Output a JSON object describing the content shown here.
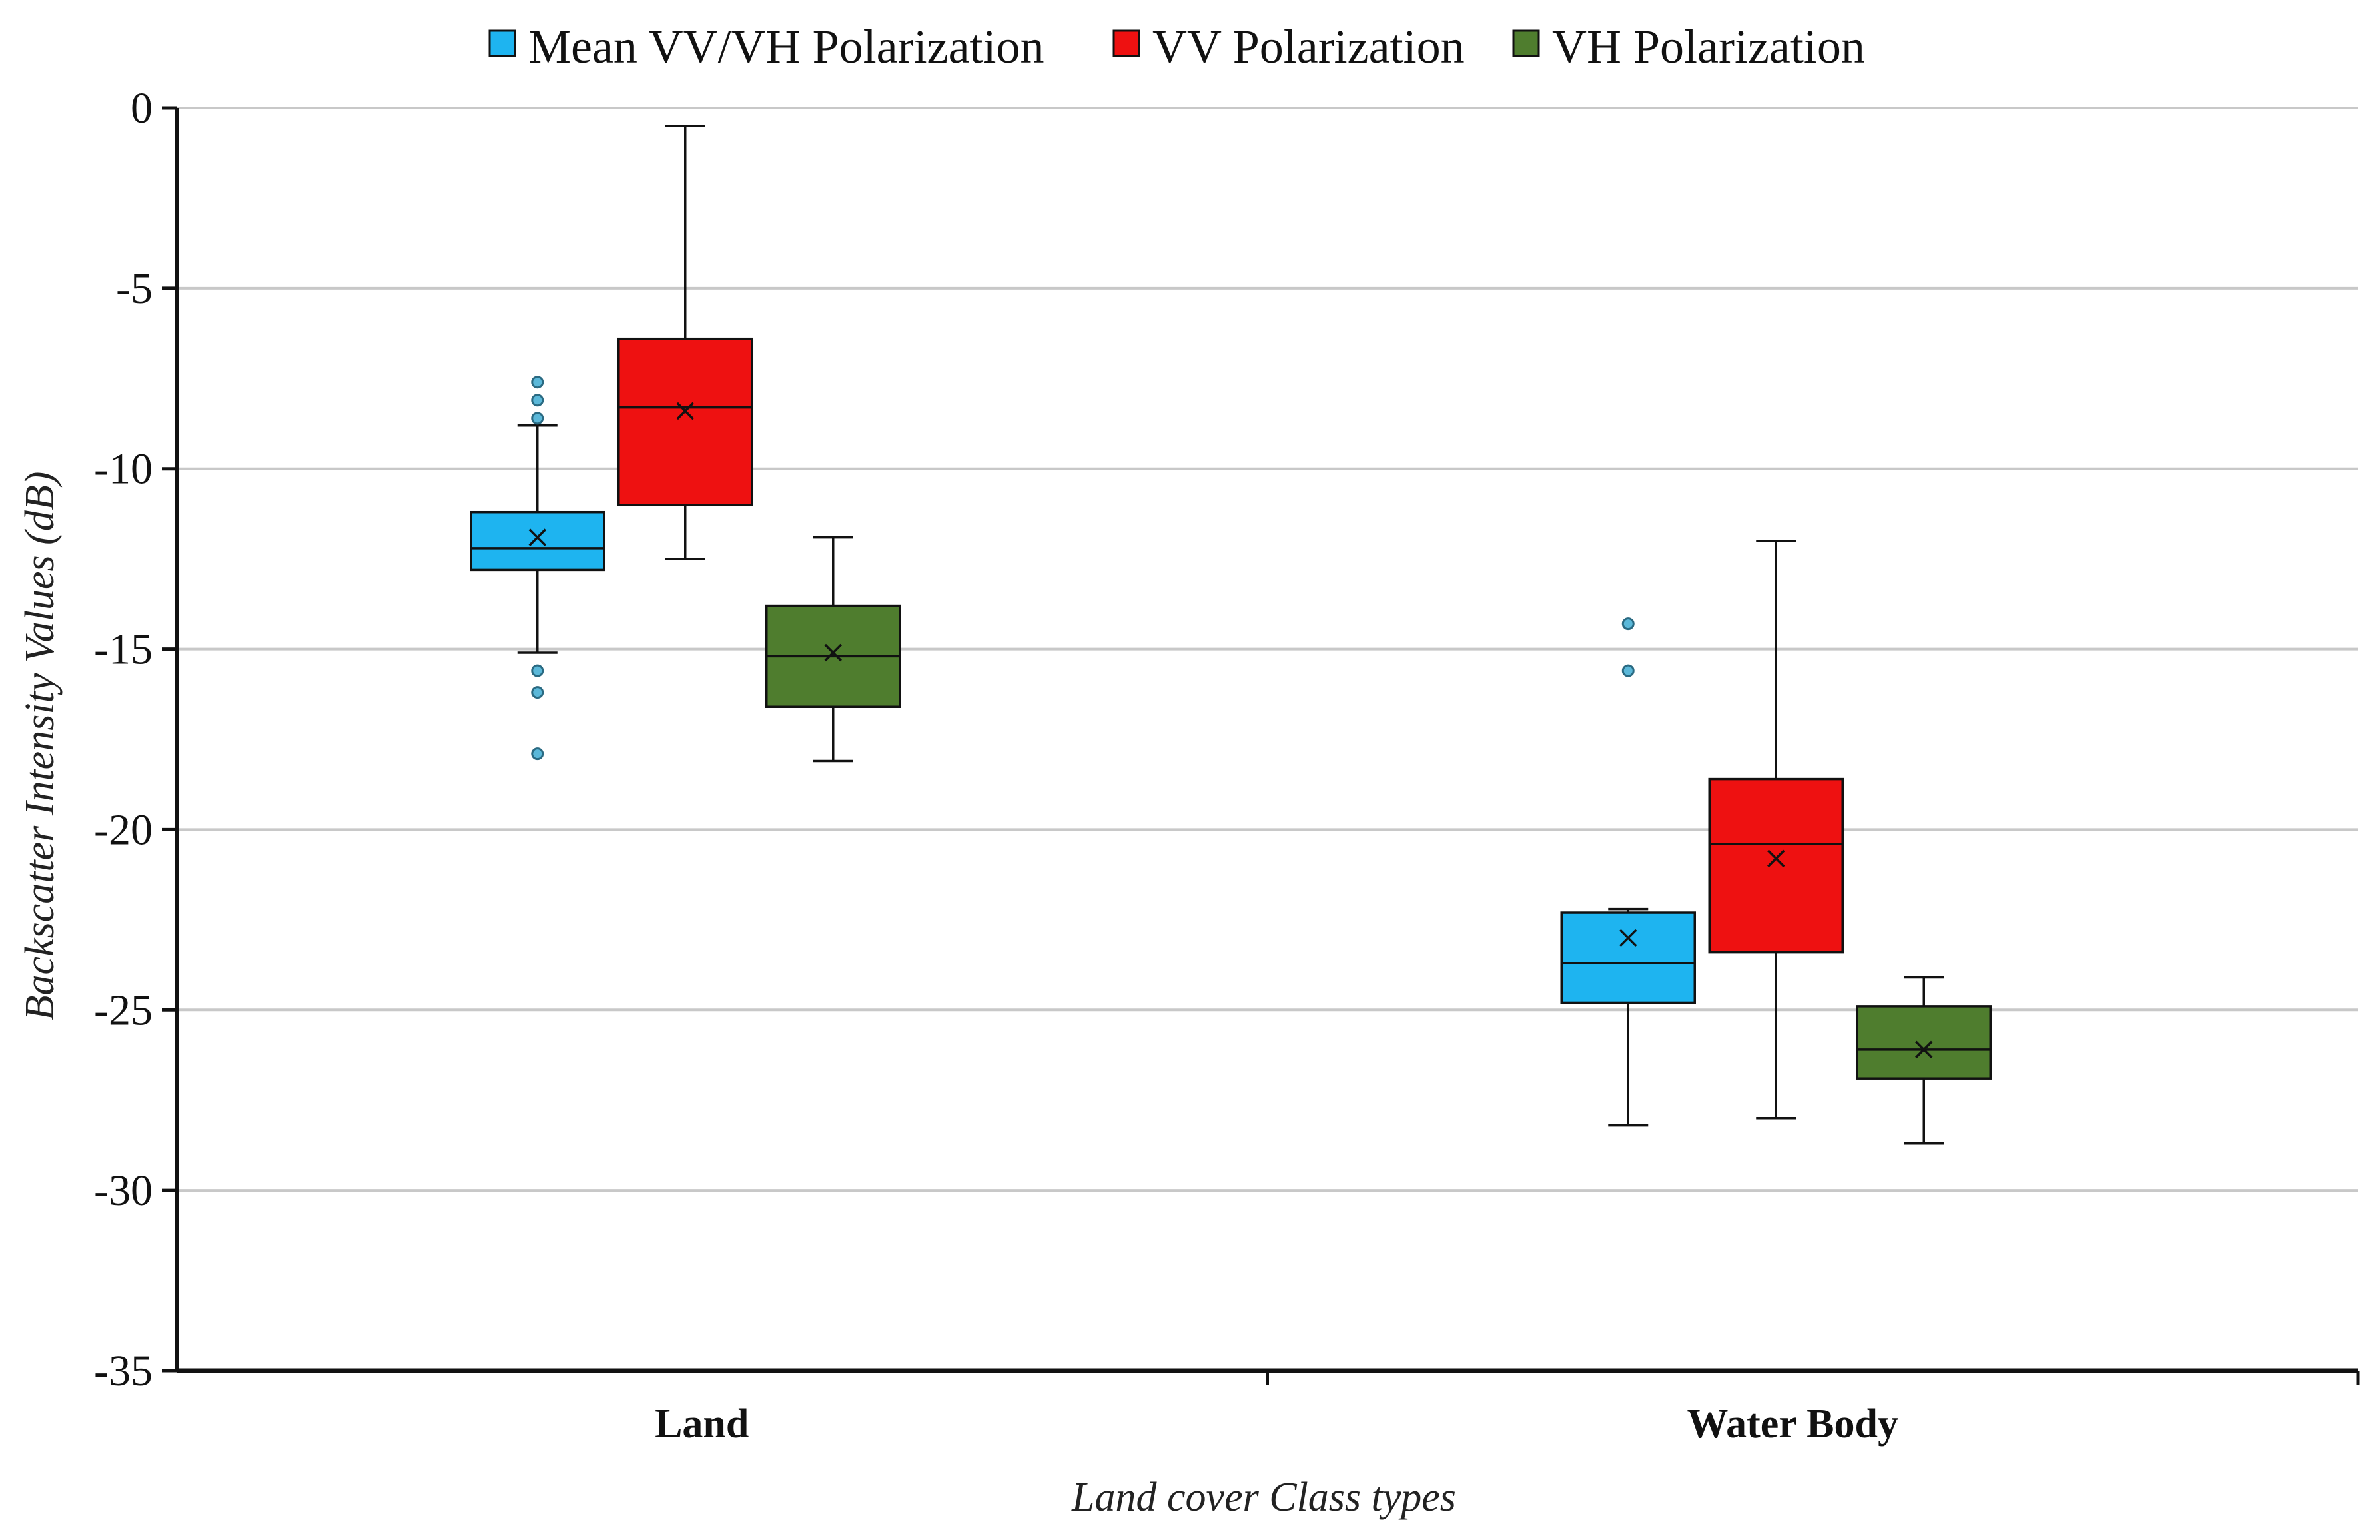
{
  "chart_data": {
    "type": "box",
    "title": "",
    "xlabel": "Land cover Class types",
    "ylabel": "Backscatter Intensity Values (dB)",
    "ylim": [
      -35,
      0
    ],
    "yticks": [
      0,
      -5,
      -10,
      -15,
      -20,
      -25,
      -30,
      -35
    ],
    "ytick_labels": [
      "0",
      "-5",
      "-10",
      "-15",
      "-20",
      "-25",
      "-30",
      "-35"
    ],
    "grid": true,
    "legend_position": "top",
    "categories": [
      "Land",
      "Water Body"
    ],
    "series": [
      {
        "name": "Mean VV/VH Polarization",
        "color": "#1eb4f0",
        "boxes": [
          {
            "category": "Land",
            "whisker_low": -15.1,
            "q1": -12.8,
            "median": -12.2,
            "q3": -11.2,
            "whisker_high": -8.8,
            "mean": -11.9,
            "outliers": [
              -7.6,
              -8.1,
              -8.6,
              -15.6,
              -16.2,
              -17.9
            ]
          },
          {
            "category": "Water Body",
            "whisker_low": -28.2,
            "q1": -24.8,
            "median": -23.7,
            "q3": -22.3,
            "whisker_high": -22.2,
            "mean": -23.0,
            "outliers": [
              -14.3,
              -15.6
            ]
          }
        ]
      },
      {
        "name": "VV Polarization",
        "color": "#ee1111",
        "boxes": [
          {
            "category": "Land",
            "whisker_low": -12.5,
            "q1": -11.0,
            "median": -8.3,
            "q3": -6.4,
            "whisker_high": -0.5,
            "mean": -8.4,
            "outliers": []
          },
          {
            "category": "Water Body",
            "whisker_low": -28.0,
            "q1": -23.4,
            "median": -20.4,
            "q3": -18.6,
            "whisker_high": -12.0,
            "mean": -20.8,
            "outliers": []
          }
        ]
      },
      {
        "name": "VH Polarization",
        "color": "#4f7d2e",
        "boxes": [
          {
            "category": "Land",
            "whisker_low": -18.1,
            "q1": -16.6,
            "median": -15.2,
            "q3": -13.8,
            "whisker_high": -11.9,
            "mean": -15.1,
            "outliers": []
          },
          {
            "category": "Water Body",
            "whisker_low": -28.7,
            "q1": -26.9,
            "median": -26.1,
            "q3": -24.9,
            "whisker_high": -24.1,
            "mean": -26.1,
            "outliers": []
          }
        ]
      }
    ]
  }
}
